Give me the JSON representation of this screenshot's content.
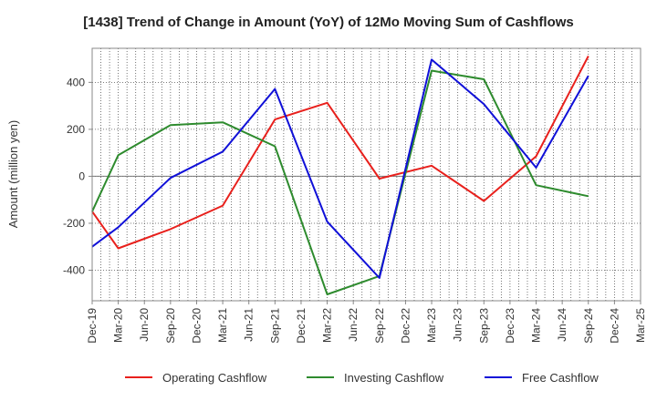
{
  "chart_data": {
    "type": "line",
    "title": "[1438]  Trend of Change in Amount (YoY) of 12Mo Moving Sum of Cashflows",
    "xlabel": "",
    "ylabel": "Amount (million yen)",
    "ylim": [
      -530,
      545
    ],
    "yticks": [
      -400,
      -200,
      0,
      200,
      400
    ],
    "grid": true,
    "legend_position": "bottom",
    "categories": [
      "Dec-19",
      "Mar-20",
      "Jun-20",
      "Sep-20",
      "Dec-20",
      "Mar-21",
      "Jun-21",
      "Sep-21",
      "Dec-21",
      "Mar-22",
      "Jun-22",
      "Sep-22",
      "Dec-22",
      "Mar-23",
      "Jun-23",
      "Sep-23",
      "Dec-23",
      "Mar-24",
      "Jun-24",
      "Sep-24",
      "Dec-24",
      "Mar-25"
    ],
    "series": [
      {
        "name": "Operating Cashflow",
        "color": "#e8201c",
        "values": [
          -150,
          -307,
          null,
          -225,
          null,
          -125,
          null,
          242,
          null,
          313,
          null,
          -10,
          null,
          45,
          null,
          -105,
          null,
          85,
          null,
          512,
          null,
          null
        ]
      },
      {
        "name": "Investing Cashflow",
        "color": "#2e8b2e",
        "values": [
          -150,
          90,
          null,
          218,
          null,
          230,
          null,
          128,
          null,
          -503,
          null,
          -425,
          null,
          450,
          null,
          413,
          null,
          -38,
          null,
          -85,
          null,
          null
        ]
      },
      {
        "name": "Free Cashflow",
        "color": "#1010d8",
        "values": [
          -300,
          -217,
          null,
          -7,
          null,
          105,
          null,
          372,
          null,
          -193,
          null,
          -433,
          null,
          497,
          null,
          307,
          null,
          37,
          null,
          428,
          null,
          null
        ]
      }
    ]
  }
}
